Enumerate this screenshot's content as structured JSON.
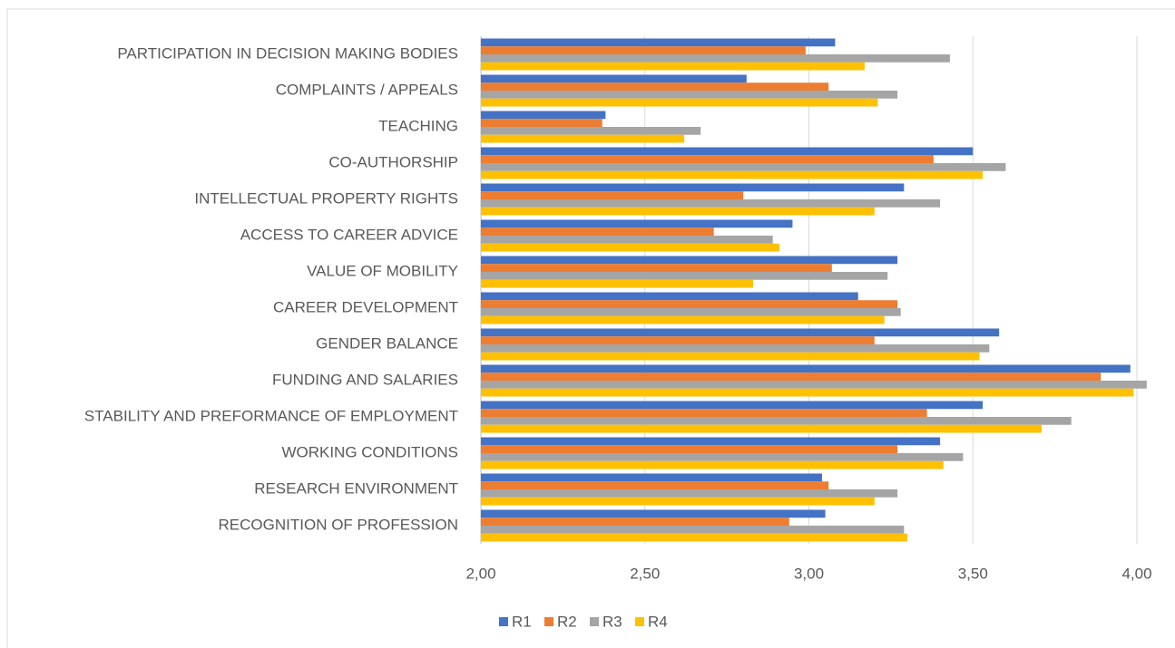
{
  "chart_data": {
    "type": "bar",
    "orientation": "horizontal",
    "categories": [
      "PARTICIPATION IN DECISION MAKING BODIES",
      "COMPLAINTS / APPEALS",
      "TEACHING",
      "CO-AUTHORSHIP",
      "INTELLECTUAL PROPERTY RIGHTS",
      "ACCESS TO CAREER ADVICE",
      "VALUE OF MOBILITY",
      "CAREER DEVELOPMENT",
      "GENDER BALANCE",
      "FUNDING AND SALARIES",
      "STABILITY AND PREFORMANCE OF EMPLOYMENT",
      "WORKING CONDITIONS",
      "RESEARCH ENVIRONMENT",
      "RECOGNITION OF PROFESSION"
    ],
    "series": [
      {
        "name": "R1",
        "color": "#4472c4",
        "values": [
          3.08,
          2.81,
          2.38,
          3.5,
          3.29,
          2.95,
          3.27,
          3.15,
          3.58,
          3.98,
          3.53,
          3.4,
          3.04,
          3.05
        ]
      },
      {
        "name": "R2",
        "color": "#ed7d31",
        "values": [
          2.99,
          3.06,
          2.37,
          3.38,
          2.8,
          2.71,
          3.07,
          3.27,
          3.2,
          3.89,
          3.36,
          3.27,
          3.06,
          2.94
        ]
      },
      {
        "name": "R3",
        "color": "#a5a5a5",
        "values": [
          3.43,
          3.27,
          2.67,
          3.6,
          3.4,
          2.89,
          3.24,
          3.28,
          3.55,
          4.03,
          3.8,
          3.47,
          3.27,
          3.29
        ]
      },
      {
        "name": "R4",
        "color": "#ffc000",
        "values": [
          3.17,
          3.21,
          2.62,
          3.53,
          3.2,
          2.91,
          2.83,
          3.23,
          3.52,
          3.99,
          3.71,
          3.41,
          3.2,
          3.3
        ]
      }
    ],
    "xlim": [
      2,
      4.05
    ],
    "xticks": [
      {
        "value": 2,
        "label": "2,00"
      },
      {
        "value": 2.5,
        "label": "2,50"
      },
      {
        "value": 3,
        "label": "3,00"
      },
      {
        "value": 3.5,
        "label": "3,50"
      },
      {
        "value": 4,
        "label": "4,00"
      }
    ],
    "grid": true,
    "legend": "bottom"
  }
}
